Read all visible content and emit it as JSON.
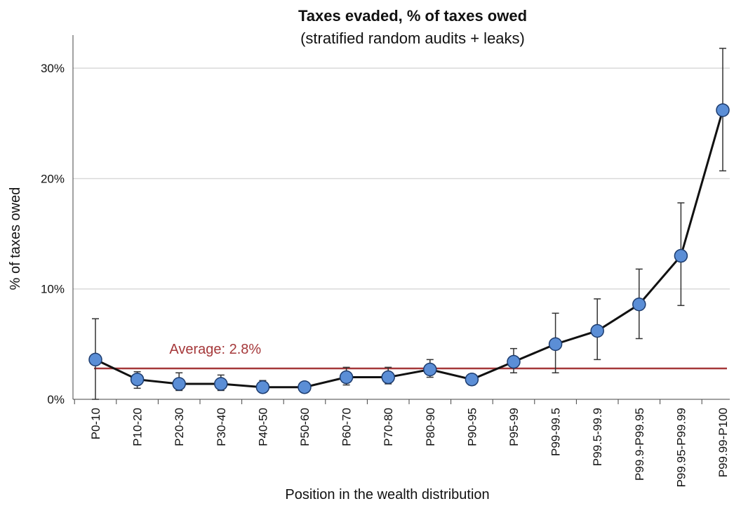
{
  "chart_data": {
    "type": "line",
    "title": "Taxes evaded, % of taxes owed",
    "subtitle": "(stratified random audits + leaks)",
    "xlabel": "Position in the wealth distribution",
    "ylabel": "% of taxes owed",
    "ylim": [
      0,
      33
    ],
    "yticks": [
      0,
      10,
      20,
      30
    ],
    "ytick_labels": [
      "0%",
      "10%",
      "20%",
      "30%"
    ],
    "grid": true,
    "categories": [
      "P0-10",
      "P10-20",
      "P20-30",
      "P30-40",
      "P40-50",
      "P50-60",
      "P60-70",
      "P70-80",
      "P80-90",
      "P90-95",
      "P95-99",
      "P99-99.5",
      "P99.5-99.9",
      "P99.9-P99.95",
      "P99.95-P99.99",
      "P99.99-P100"
    ],
    "series": [
      {
        "values": [
          3.6,
          1.8,
          1.4,
          1.4,
          1.1,
          1.1,
          2.0,
          2.0,
          2.7,
          1.8,
          3.4,
          5.0,
          6.2,
          8.6,
          13.0,
          26.2
        ],
        "err_low": [
          0.0,
          1.0,
          0.8,
          0.8,
          0.7,
          0.8,
          1.3,
          1.4,
          2.0,
          1.3,
          2.4,
          2.4,
          3.6,
          5.5,
          8.5,
          20.7
        ],
        "err_high": [
          7.3,
          2.5,
          2.4,
          2.2,
          1.7,
          1.5,
          2.9,
          2.9,
          3.6,
          2.3,
          4.6,
          7.8,
          9.1,
          11.8,
          17.8,
          31.8
        ],
        "color": "#5b8ed6",
        "line_color": "#111111"
      }
    ],
    "reference_line": {
      "value": 2.8,
      "label": "Average: 2.8%",
      "color": "#a5383a"
    }
  }
}
